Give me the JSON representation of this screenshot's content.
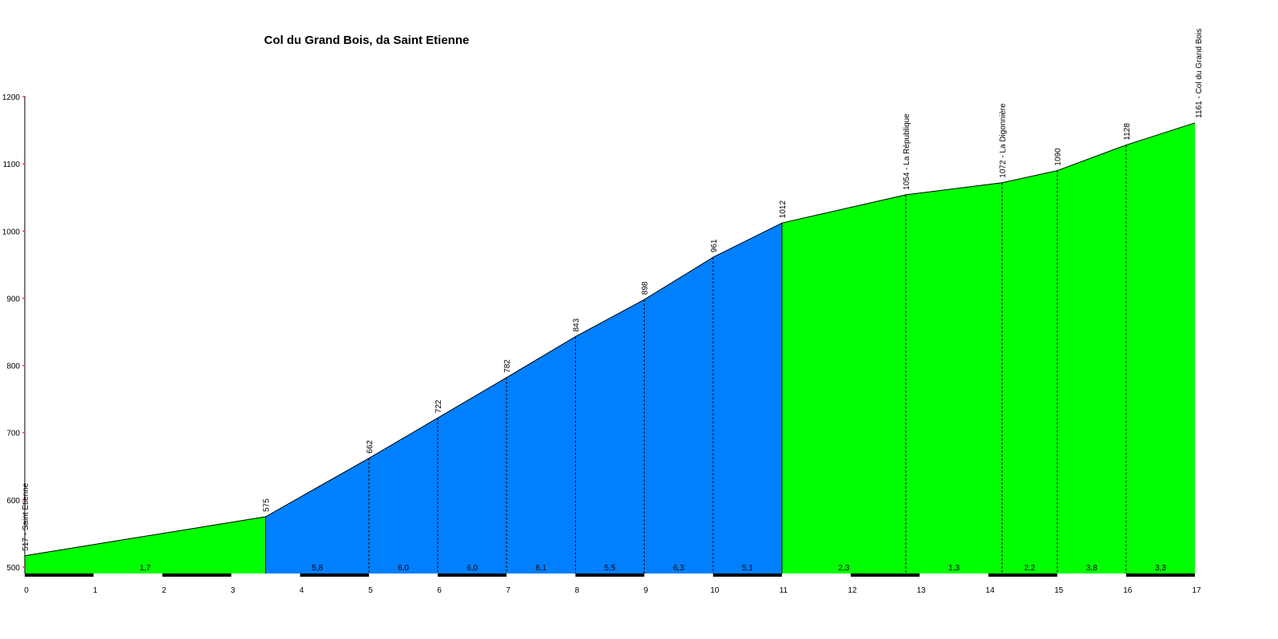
{
  "chart_data": {
    "type": "area",
    "title": "Col du Grand Bois, da Saint Etienne",
    "xlabel": "",
    "ylabel": "",
    "xlim": [
      0,
      17
    ],
    "ylim": [
      500,
      1200
    ],
    "x_ticks": [
      0,
      1,
      2,
      3,
      4,
      5,
      6,
      7,
      8,
      9,
      10,
      11,
      12,
      13,
      14,
      15,
      16,
      17
    ],
    "y_ticks": [
      500,
      600,
      700,
      800,
      900,
      1000,
      1100,
      1200
    ],
    "grid": false,
    "legend": "none",
    "points": [
      {
        "x": 0,
        "y": 517,
        "label": "517 - Saint Etienne"
      },
      {
        "x": 3.5,
        "y": 575,
        "label": "575"
      },
      {
        "x": 5,
        "y": 662,
        "label": "662"
      },
      {
        "x": 6,
        "y": 722,
        "label": "722"
      },
      {
        "x": 7,
        "y": 782,
        "label": "782"
      },
      {
        "x": 8,
        "y": 843,
        "label": "843"
      },
      {
        "x": 9,
        "y": 898,
        "label": "898"
      },
      {
        "x": 10,
        "y": 961,
        "label": "961"
      },
      {
        "x": 11,
        "y": 1012,
        "label": "1012"
      },
      {
        "x": 12.8,
        "y": 1054,
        "label": "1054 - La République"
      },
      {
        "x": 14.2,
        "y": 1072,
        "label": "1072 - La Digonnière"
      },
      {
        "x": 15,
        "y": 1090,
        "label": "1090"
      },
      {
        "x": 16,
        "y": 1128,
        "label": "1128"
      },
      {
        "x": 17,
        "y": 1161,
        "label": "1161 - Col du Grand Bois"
      }
    ],
    "segments": [
      {
        "from": 0,
        "to": 3.5,
        "gradient": "1,7",
        "color": "#00ff00"
      },
      {
        "from": 3.5,
        "to": 5,
        "gradient": "5,8",
        "color": "#0080ff"
      },
      {
        "from": 5,
        "to": 6,
        "gradient": "6,0",
        "color": "#0080ff"
      },
      {
        "from": 6,
        "to": 7,
        "gradient": "6,0",
        "color": "#0080ff"
      },
      {
        "from": 7,
        "to": 8,
        "gradient": "6,1",
        "color": "#0080ff"
      },
      {
        "from": 8,
        "to": 9,
        "gradient": "5,5",
        "color": "#0080ff"
      },
      {
        "from": 9,
        "to": 10,
        "gradient": "6,3",
        "color": "#0080ff"
      },
      {
        "from": 10,
        "to": 11,
        "gradient": "5,1",
        "color": "#0080ff"
      },
      {
        "from": 11,
        "to": 12.8,
        "gradient": "2,3",
        "color": "#00ff00"
      },
      {
        "from": 12.8,
        "to": 14.2,
        "gradient": "1,3",
        "color": "#00ff00"
      },
      {
        "from": 14.2,
        "to": 15,
        "gradient": "2,2",
        "color": "#00ff00"
      },
      {
        "from": 15,
        "to": 16,
        "gradient": "3,8",
        "color": "#00ff00"
      },
      {
        "from": 16,
        "to": 17,
        "gradient": "3,3",
        "color": "#00ff00"
      }
    ]
  }
}
